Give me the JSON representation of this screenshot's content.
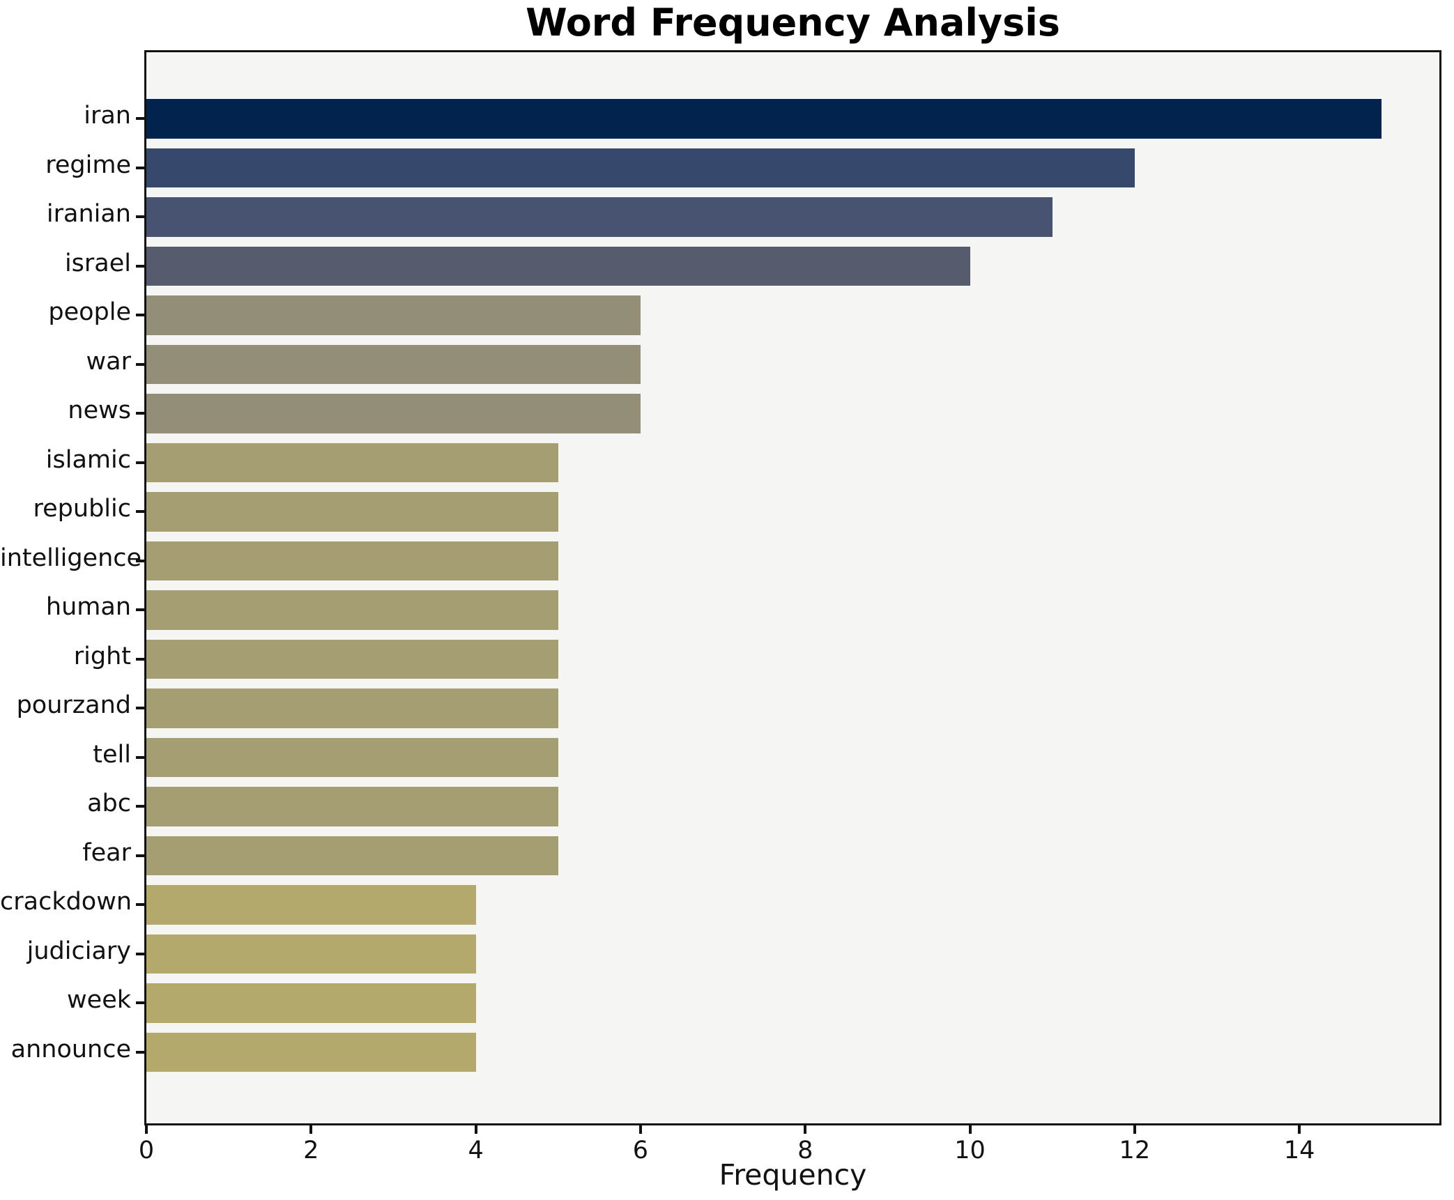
{
  "chart_data": {
    "type": "bar",
    "orientation": "horizontal",
    "title": "Word Frequency Analysis",
    "xlabel": "Frequency",
    "ylabel": "",
    "categories": [
      "iran",
      "regime",
      "iranian",
      "israel",
      "people",
      "war",
      "news",
      "islamic",
      "republic",
      "intelligence",
      "human",
      "right",
      "pourzand",
      "tell",
      "abc",
      "fear",
      "crackdown",
      "judiciary",
      "week",
      "announce"
    ],
    "values": [
      15,
      12,
      11,
      10,
      6,
      6,
      6,
      5,
      5,
      5,
      5,
      5,
      5,
      5,
      5,
      5,
      4,
      4,
      4,
      4
    ],
    "bar_colors": [
      "#02234e",
      "#36496d",
      "#485271",
      "#565c6d",
      "#938e77",
      "#938e77",
      "#938e77",
      "#a69e73",
      "#a69e73",
      "#a69e73",
      "#a69e73",
      "#a69e73",
      "#a69e73",
      "#a69e73",
      "#a69e73",
      "#a69e73",
      "#b4a96d",
      "#b4a96d",
      "#b4a96d",
      "#b4a96d"
    ],
    "xlim": [
      0,
      15.7
    ],
    "xticks": [
      0,
      2,
      4,
      6,
      8,
      10,
      12,
      14
    ],
    "grid": false,
    "legend": null,
    "colormap": "cividis (mapped by value, high = dark navy, low = khaki)",
    "plot_bg": "#f5f5f3",
    "figure_bg": "#ffffff",
    "axis_color": "#111111",
    "text_color": "#111111"
  }
}
